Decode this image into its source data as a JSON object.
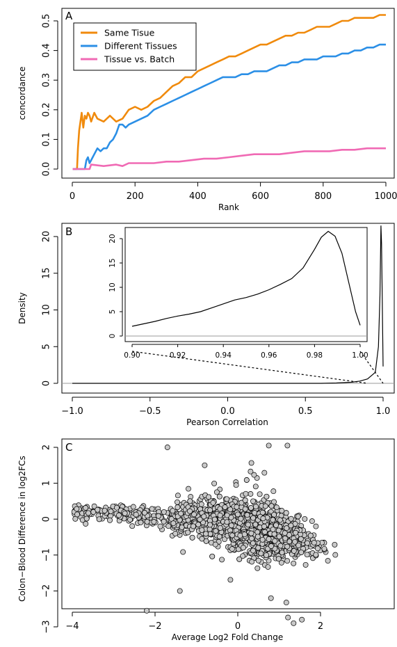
{
  "chart_data": [
    {
      "panel": "A",
      "type": "line",
      "xlabel": "Rank",
      "ylabel": "concordance",
      "xlim": [
        0,
        1000
      ],
      "ylim": [
        0,
        0.53
      ],
      "xticks": [
        "0",
        "200",
        "400",
        "600",
        "800",
        "1000"
      ],
      "yticks": [
        "0.0",
        "0.1",
        "0.2",
        "0.3",
        "0.4",
        "0.5"
      ],
      "legend_position": "top-left",
      "series": [
        {
          "name": "Same Tisue",
          "color": "#f08a0c",
          "points": [
            [
              1,
              0
            ],
            [
              15,
              0
            ],
            [
              18,
              0.07
            ],
            [
              22,
              0.13
            ],
            [
              26,
              0.16
            ],
            [
              30,
              0.19
            ],
            [
              35,
              0.14
            ],
            [
              40,
              0.18
            ],
            [
              45,
              0.17
            ],
            [
              50,
              0.19
            ],
            [
              55,
              0.18
            ],
            [
              60,
              0.16
            ],
            [
              70,
              0.19
            ],
            [
              80,
              0.17
            ],
            [
              100,
              0.16
            ],
            [
              120,
              0.18
            ],
            [
              140,
              0.16
            ],
            [
              160,
              0.17
            ],
            [
              180,
              0.2
            ],
            [
              200,
              0.21
            ],
            [
              220,
              0.2
            ],
            [
              240,
              0.21
            ],
            [
              260,
              0.23
            ],
            [
              280,
              0.24
            ],
            [
              300,
              0.26
            ],
            [
              320,
              0.28
            ],
            [
              340,
              0.29
            ],
            [
              360,
              0.31
            ],
            [
              380,
              0.31
            ],
            [
              400,
              0.33
            ],
            [
              420,
              0.34
            ],
            [
              440,
              0.35
            ],
            [
              460,
              0.36
            ],
            [
              480,
              0.37
            ],
            [
              500,
              0.38
            ],
            [
              520,
              0.38
            ],
            [
              540,
              0.39
            ],
            [
              560,
              0.4
            ],
            [
              580,
              0.41
            ],
            [
              600,
              0.42
            ],
            [
              620,
              0.42
            ],
            [
              640,
              0.43
            ],
            [
              660,
              0.44
            ],
            [
              680,
              0.45
            ],
            [
              700,
              0.45
            ],
            [
              720,
              0.46
            ],
            [
              740,
              0.46
            ],
            [
              760,
              0.47
            ],
            [
              780,
              0.48
            ],
            [
              800,
              0.48
            ],
            [
              820,
              0.48
            ],
            [
              840,
              0.49
            ],
            [
              860,
              0.5
            ],
            [
              880,
              0.5
            ],
            [
              900,
              0.51
            ],
            [
              920,
              0.51
            ],
            [
              940,
              0.51
            ],
            [
              960,
              0.51
            ],
            [
              980,
              0.52
            ],
            [
              1000,
              0.52
            ]
          ]
        },
        {
          "name": "Different Tissues",
          "color": "#2b8fe6",
          "points": [
            [
              1,
              0
            ],
            [
              40,
              0
            ],
            [
              45,
              0.03
            ],
            [
              50,
              0.04
            ],
            [
              55,
              0.02
            ],
            [
              60,
              0.03
            ],
            [
              70,
              0.05
            ],
            [
              80,
              0.07
            ],
            [
              90,
              0.06
            ],
            [
              100,
              0.07
            ],
            [
              110,
              0.07
            ],
            [
              120,
              0.09
            ],
            [
              130,
              0.1
            ],
            [
              140,
              0.12
            ],
            [
              150,
              0.15
            ],
            [
              160,
              0.15
            ],
            [
              170,
              0.14
            ],
            [
              180,
              0.15
            ],
            [
              200,
              0.16
            ],
            [
              220,
              0.17
            ],
            [
              240,
              0.18
            ],
            [
              260,
              0.2
            ],
            [
              280,
              0.21
            ],
            [
              300,
              0.22
            ],
            [
              320,
              0.23
            ],
            [
              340,
              0.24
            ],
            [
              360,
              0.25
            ],
            [
              380,
              0.26
            ],
            [
              400,
              0.27
            ],
            [
              420,
              0.28
            ],
            [
              440,
              0.29
            ],
            [
              460,
              0.3
            ],
            [
              480,
              0.31
            ],
            [
              500,
              0.31
            ],
            [
              520,
              0.31
            ],
            [
              540,
              0.32
            ],
            [
              560,
              0.32
            ],
            [
              580,
              0.33
            ],
            [
              600,
              0.33
            ],
            [
              620,
              0.33
            ],
            [
              640,
              0.34
            ],
            [
              660,
              0.35
            ],
            [
              680,
              0.35
            ],
            [
              700,
              0.36
            ],
            [
              720,
              0.36
            ],
            [
              740,
              0.37
            ],
            [
              760,
              0.37
            ],
            [
              780,
              0.37
            ],
            [
              800,
              0.38
            ],
            [
              820,
              0.38
            ],
            [
              840,
              0.38
            ],
            [
              860,
              0.39
            ],
            [
              880,
              0.39
            ],
            [
              900,
              0.4
            ],
            [
              920,
              0.4
            ],
            [
              940,
              0.41
            ],
            [
              960,
              0.41
            ],
            [
              980,
              0.42
            ],
            [
              1000,
              0.42
            ]
          ]
        },
        {
          "name": "Tissue vs. Batch",
          "color": "#f06ab4",
          "points": [
            [
              1,
              0
            ],
            [
              55,
              0
            ],
            [
              60,
              0.015
            ],
            [
              100,
              0.01
            ],
            [
              140,
              0.015
            ],
            [
              160,
              0.01
            ],
            [
              180,
              0.02
            ],
            [
              220,
              0.02
            ],
            [
              260,
              0.02
            ],
            [
              300,
              0.025
            ],
            [
              340,
              0.025
            ],
            [
              380,
              0.03
            ],
            [
              420,
              0.035
            ],
            [
              460,
              0.035
            ],
            [
              500,
              0.04
            ],
            [
              540,
              0.045
            ],
            [
              580,
              0.05
            ],
            [
              620,
              0.05
            ],
            [
              660,
              0.05
            ],
            [
              700,
              0.055
            ],
            [
              740,
              0.06
            ],
            [
              780,
              0.06
            ],
            [
              820,
              0.06
            ],
            [
              860,
              0.065
            ],
            [
              900,
              0.065
            ],
            [
              940,
              0.07
            ],
            [
              980,
              0.07
            ],
            [
              1000,
              0.07
            ]
          ]
        }
      ]
    },
    {
      "panel": "B",
      "type": "line",
      "xlabel": "Pearson Correlation",
      "ylabel": "Density",
      "xlim": [
        -1,
        1
      ],
      "ylim": [
        0,
        22
      ],
      "xticks": [
        "−1.0",
        "−0.5",
        "0.0",
        "0.5",
        "1.0"
      ],
      "yticks": [
        "0",
        "5",
        "10",
        "15",
        "20"
      ],
      "series": [
        {
          "name": "",
          "color": "#000000",
          "points": [
            [
              -1,
              0
            ],
            [
              0.6,
              0
            ],
            [
              0.7,
              0.05
            ],
            [
              0.8,
              0.15
            ],
            [
              0.85,
              0.3
            ],
            [
              0.9,
              0.6
            ],
            [
              0.95,
              1.5
            ],
            [
              0.97,
              5
            ],
            [
              0.98,
              12
            ],
            [
              0.986,
              21.5
            ],
            [
              0.99,
              19
            ],
            [
              1,
              2.3
            ]
          ]
        }
      ],
      "inset": {
        "xlim": [
          0.895,
          1.0
        ],
        "ylim": [
          -1,
          23
        ],
        "xticks": [
          "0.90",
          "0.92",
          "0.94",
          "0.96",
          "0.98",
          "1.00"
        ],
        "yticks": [
          "0",
          "5",
          "10",
          "15",
          "20"
        ],
        "points": [
          [
            0.9,
            2
          ],
          [
            0.905,
            2.5
          ],
          [
            0.91,
            3
          ],
          [
            0.915,
            3.6
          ],
          [
            0.92,
            4.1
          ],
          [
            0.925,
            4.5
          ],
          [
            0.93,
            5
          ],
          [
            0.935,
            5.8
          ],
          [
            0.94,
            6.6
          ],
          [
            0.945,
            7.4
          ],
          [
            0.95,
            7.9
          ],
          [
            0.955,
            8.6
          ],
          [
            0.96,
            9.5
          ],
          [
            0.965,
            10.6
          ],
          [
            0.97,
            11.8
          ],
          [
            0.975,
            14
          ],
          [
            0.98,
            17.8
          ],
          [
            0.983,
            20.3
          ],
          [
            0.986,
            21.5
          ],
          [
            0.989,
            20.5
          ],
          [
            0.992,
            17
          ],
          [
            0.995,
            11
          ],
          [
            0.998,
            5
          ],
          [
            1.0,
            2.2
          ]
        ]
      }
    },
    {
      "panel": "C",
      "type": "scatter",
      "xlabel": "Average Log2 Fold Change",
      "ylabel": "Colon−Blood Difference in log2FCs",
      "xlim": [
        -4.2,
        3.6
      ],
      "ylim": [
        -3.1,
        2.2
      ],
      "xticks": [
        "−4",
        "−2",
        "0",
        "2"
      ],
      "yticks": [
        "−3",
        "−2",
        "−1",
        "0",
        "1",
        "2"
      ],
      "point_fill": "#c8c8c8",
      "point_count_approx": 1500
    }
  ]
}
